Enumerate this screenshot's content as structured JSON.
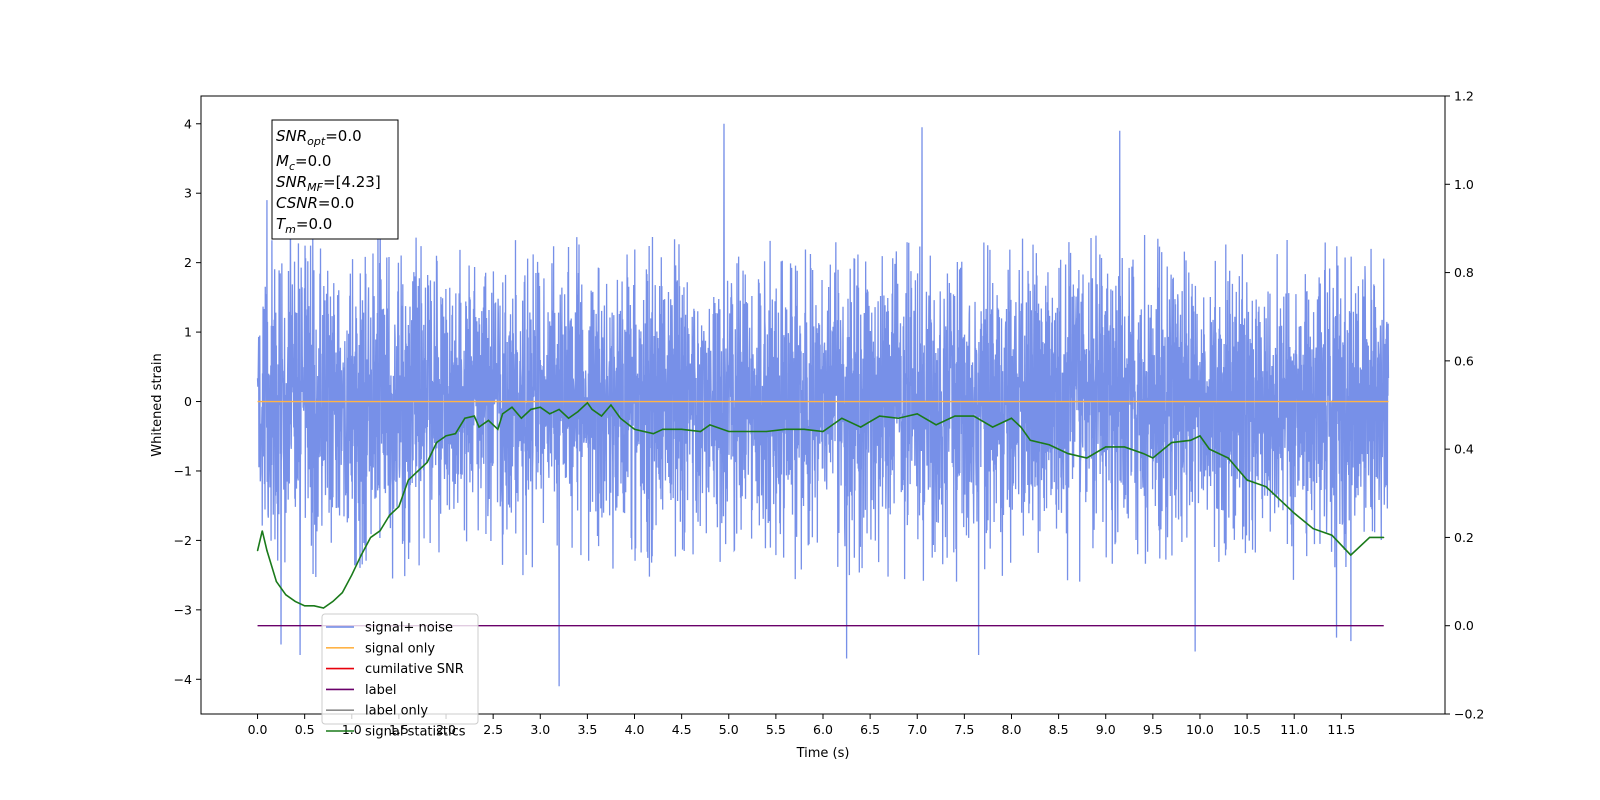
{
  "chart_data": {
    "type": "line",
    "xlabel": "Time (s)",
    "ylabel_left": "Whitened strain",
    "ylabel_right": "",
    "xlim": [
      -0.6,
      12.6
    ],
    "ylim_left": [
      -4.5,
      4.4
    ],
    "ylim_right": [
      -0.2,
      1.2
    ],
    "x_ticks": [
      0.0,
      0.5,
      1.0,
      1.5,
      2.0,
      2.5,
      3.0,
      3.5,
      4.0,
      4.5,
      5.0,
      5.5,
      6.0,
      6.5,
      7.0,
      7.5,
      8.0,
      8.5,
      9.0,
      9.5,
      10.0,
      10.5,
      11.0,
      11.5
    ],
    "x_tick_labels": [
      "0.0",
      "0.5",
      "1.0",
      "1.5",
      "2.0",
      "2.5",
      "3.0",
      "3.5",
      "4.0",
      "4.5",
      "5.0",
      "5.5",
      "6.0",
      "6.5",
      "7.0",
      "7.5",
      "8.0",
      "8.5",
      "9.0",
      "9.5",
      "10.0",
      "10.5",
      "11.0",
      "11.5"
    ],
    "y_left_ticks": [
      4,
      3,
      2,
      1,
      0,
      -1,
      -2,
      -3,
      -4
    ],
    "y_left_tick_labels": [
      "4",
      "3",
      "2",
      "1",
      "0",
      "−1",
      "−2",
      "−3",
      "−4"
    ],
    "y_right_ticks": [
      1.2,
      1.0,
      0.8,
      0.6,
      0.4,
      0.2,
      0.0,
      -0.2
    ],
    "y_right_tick_labels": [
      "1.2",
      "1.0",
      "0.8",
      "0.6",
      "0.4",
      "0.2",
      "0.0",
      "−0.2"
    ],
    "grid": false,
    "legend_position": "lower-left",
    "series": [
      {
        "name": "signal+ noise",
        "axis": "left",
        "color": "#6b87e6",
        "description_type": "noise",
        "x_range": [
          0.0,
          12.0
        ],
        "envelope_upper": 1.8,
        "envelope_lower": -2.0,
        "peaks": [
          {
            "x": 4.95,
            "y": 4.0
          },
          {
            "x": 7.05,
            "y": 3.95
          },
          {
            "x": 9.15,
            "y": 3.9
          },
          {
            "x": 0.1,
            "y": 2.9
          },
          {
            "x": 0.35,
            "y": 2.9
          },
          {
            "x": 1.3,
            "y": 3.2
          },
          {
            "x": 3.2,
            "y": -4.1
          },
          {
            "x": 6.25,
            "y": -3.7
          },
          {
            "x": 7.65,
            "y": -3.65
          },
          {
            "x": 0.45,
            "y": -3.65
          },
          {
            "x": 9.95,
            "y": -3.6
          },
          {
            "x": 11.45,
            "y": -3.4
          },
          {
            "x": 11.6,
            "y": -3.45
          },
          {
            "x": 0.25,
            "y": -3.5
          }
        ]
      },
      {
        "name": "signal only",
        "axis": "left",
        "color": "#ffb347",
        "x": [
          0.0,
          12.0
        ],
        "y": [
          0.0,
          0.0
        ]
      },
      {
        "name": "cumilative SNR",
        "axis": "right",
        "color": "#e8000b",
        "x": [],
        "y": []
      },
      {
        "name": "label",
        "axis": "right",
        "color": "#6a006a",
        "x": [
          0.0,
          11.95
        ],
        "y": [
          0.0,
          0.0
        ]
      },
      {
        "name": "label only",
        "axis": "right",
        "color": "#8c8c8c",
        "x": [],
        "y": []
      },
      {
        "name": "signal statistics",
        "axis": "right",
        "color": "#1a7a1a",
        "x": [
          0.0,
          0.05,
          0.1,
          0.2,
          0.3,
          0.4,
          0.5,
          0.6,
          0.7,
          0.8,
          0.9,
          1.0,
          1.1,
          1.2,
          1.3,
          1.4,
          1.5,
          1.6,
          1.7,
          1.8,
          1.9,
          2.0,
          2.1,
          2.2,
          2.3,
          2.35,
          2.45,
          2.55,
          2.6,
          2.7,
          2.8,
          2.9,
          3.0,
          3.1,
          3.2,
          3.3,
          3.4,
          3.5,
          3.55,
          3.65,
          3.75,
          3.85,
          4.0,
          4.2,
          4.3,
          4.5,
          4.7,
          4.8,
          5.0,
          5.2,
          5.4,
          5.6,
          5.8,
          6.0,
          6.2,
          6.4,
          6.6,
          6.8,
          7.0,
          7.2,
          7.4,
          7.6,
          7.8,
          8.0,
          8.1,
          8.2,
          8.4,
          8.6,
          8.8,
          9.0,
          9.2,
          9.4,
          9.5,
          9.7,
          9.9,
          10.0,
          10.1,
          10.3,
          10.5,
          10.7,
          10.9,
          11.0,
          11.2,
          11.4,
          11.6,
          11.8,
          11.95
        ],
        "y": [
          0.17,
          0.215,
          0.17,
          0.1,
          0.07,
          0.055,
          0.045,
          0.045,
          0.04,
          0.055,
          0.075,
          0.115,
          0.16,
          0.2,
          0.215,
          0.25,
          0.27,
          0.33,
          0.35,
          0.37,
          0.415,
          0.43,
          0.435,
          0.47,
          0.475,
          0.45,
          0.465,
          0.445,
          0.48,
          0.495,
          0.47,
          0.49,
          0.495,
          0.48,
          0.49,
          0.47,
          0.485,
          0.505,
          0.49,
          0.475,
          0.5,
          0.47,
          0.445,
          0.435,
          0.445,
          0.445,
          0.44,
          0.455,
          0.44,
          0.44,
          0.44,
          0.445,
          0.445,
          0.44,
          0.47,
          0.45,
          0.475,
          0.47,
          0.48,
          0.455,
          0.475,
          0.475,
          0.45,
          0.47,
          0.45,
          0.42,
          0.41,
          0.39,
          0.38,
          0.405,
          0.405,
          0.39,
          0.38,
          0.415,
          0.42,
          0.43,
          0.4,
          0.38,
          0.33,
          0.315,
          0.275,
          0.255,
          0.22,
          0.205,
          0.16,
          0.2,
          0.2
        ]
      }
    ],
    "annotation_box": [
      {
        "base": "SNR",
        "sub": "opt",
        "value": "=0.0"
      },
      {
        "base": "M",
        "sub": "c",
        "value": "=0.0"
      },
      {
        "base": "SNR",
        "sub": "MF",
        "value": "=[4.23]"
      },
      {
        "base": "CSNR",
        "sub": "",
        "value": "=0.0"
      },
      {
        "base": "T",
        "sub": "m",
        "value": "=0.0"
      }
    ]
  }
}
